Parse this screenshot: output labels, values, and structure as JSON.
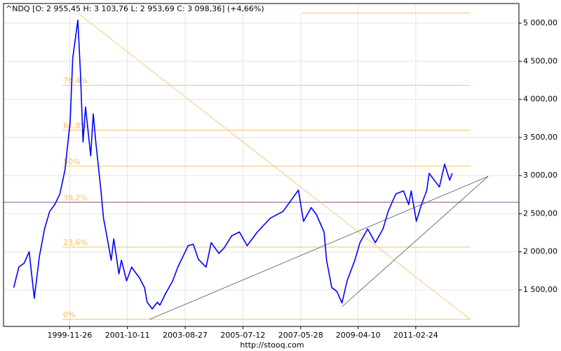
{
  "chart_data": {
    "type": "line",
    "title": "^NDQ [O: 2 955,45  H: 3 103,76  L: 2 953,69  C: 3 098,36] (+4,66%)",
    "footer": "http://stooq.com",
    "x": [
      "1998-02",
      "1998-04",
      "1998-06",
      "1998-08",
      "1998-10",
      "1998-12",
      "1999-02",
      "1999-04",
      "1999-06",
      "1999-08",
      "1999-10",
      "1999-12",
      "2000-01",
      "2000-03",
      "2000-04",
      "2000-05",
      "2000-06",
      "2000-08",
      "2000-09",
      "2000-10",
      "2000-12",
      "2001-01",
      "2001-02",
      "2001-04",
      "2001-05",
      "2001-07",
      "2001-08",
      "2001-10",
      "2001-12",
      "2002-01",
      "2002-03",
      "2002-05",
      "2002-06",
      "2002-08",
      "2002-10",
      "2002-11",
      "2003-01",
      "2003-04",
      "2003-06",
      "2003-08",
      "2003-10",
      "2003-12",
      "2004-02",
      "2004-05",
      "2004-07",
      "2004-10",
      "2004-12",
      "2005-03",
      "2005-06",
      "2005-09",
      "2006-01",
      "2006-06",
      "2006-11",
      "2007-02",
      "2007-05",
      "2007-07",
      "2007-10",
      "2007-12",
      "2008-03",
      "2008-04",
      "2008-06",
      "2008-08",
      "2008-10",
      "2008-12",
      "2009-03",
      "2009-05",
      "2009-08",
      "2009-11",
      "2010-02",
      "2010-04",
      "2010-07",
      "2010-10",
      "2010-12",
      "2011-01",
      "2011-03",
      "2011-05",
      "2011-07",
      "2011-08",
      "2011-10",
      "2011-12",
      "2012-02",
      "2012-04",
      "2012-05"
    ],
    "values": [
      1530,
      1800,
      1850,
      2000,
      1390,
      1940,
      2300,
      2530,
      2620,
      2760,
      3080,
      3720,
      4540,
      5040,
      4350,
      3440,
      3900,
      3260,
      3810,
      3440,
      2800,
      2440,
      2260,
      1890,
      2170,
      1710,
      1890,
      1620,
      1800,
      1750,
      1660,
      1530,
      1340,
      1250,
      1340,
      1300,
      1440,
      1620,
      1800,
      1940,
      2080,
      2100,
      1900,
      1800,
      2120,
      1980,
      2050,
      2210,
      2260,
      2080,
      2260,
      2440,
      2530,
      2670,
      2810,
      2400,
      2580,
      2490,
      2260,
      1890,
      1530,
      1480,
      1330,
      1620,
      1890,
      2120,
      2300,
      2120,
      2300,
      2530,
      2760,
      2800,
      2620,
      2800,
      2400,
      2620,
      2800,
      3030,
      2940,
      2850,
      3150,
      2940,
      3030
    ],
    "color": "#0000ff",
    "xlim": [
      "1997-10",
      "2014-07"
    ],
    "ylim": [
      1021,
      5258
    ],
    "xticks": [
      "1999-11-26",
      "2001-10-11",
      "2003-08-27",
      "2005-07-12",
      "2007-05-28",
      "2009-04-10",
      "2011-02-24"
    ],
    "yticks": [
      {
        "value": 1500,
        "label": "1 500,00"
      },
      {
        "value": 2000,
        "label": "2 000,00"
      },
      {
        "value": 2500,
        "label": "2 500,00"
      },
      {
        "value": 3000,
        "label": "3 000,00"
      },
      {
        "value": 3500,
        "label": "3 500,00"
      },
      {
        "value": 4000,
        "label": "4 000,00"
      },
      {
        "value": 4500,
        "label": "4 500,00"
      },
      {
        "value": 5000,
        "label": "5 000,00"
      }
    ],
    "grid": true,
    "fib_color": "#f5c060",
    "fib_span": [
      "1999-09",
      "2012-12"
    ],
    "fib_levels": [
      {
        "value": 1114,
        "label": "0%"
      },
      {
        "value": 2062,
        "label": "23,6%"
      },
      {
        "value": 2649,
        "label": "38,2%"
      },
      {
        "value": 3123,
        "label": "50%"
      },
      {
        "value": 3597,
        "label": "61,8%"
      },
      {
        "value": 4184,
        "label": "76,4%"
      },
      {
        "value": 5132,
        "label": null
      }
    ],
    "hline": {
      "value": 2650,
      "color": "#8060a0"
    },
    "trend_lines": [
      {
        "x": [
          "2000-03",
          "2012-12"
        ],
        "values": [
          5132,
          1114
        ],
        "color": "#f5c060"
      },
      {
        "x": [
          "2002-07",
          "2013-07"
        ],
        "values": [
          1114,
          2990
        ],
        "color": "#555555"
      },
      {
        "x": [
          "2008-10",
          "2013-07"
        ],
        "values": [
          1280,
          2990
        ],
        "color": "#555555"
      }
    ]
  }
}
